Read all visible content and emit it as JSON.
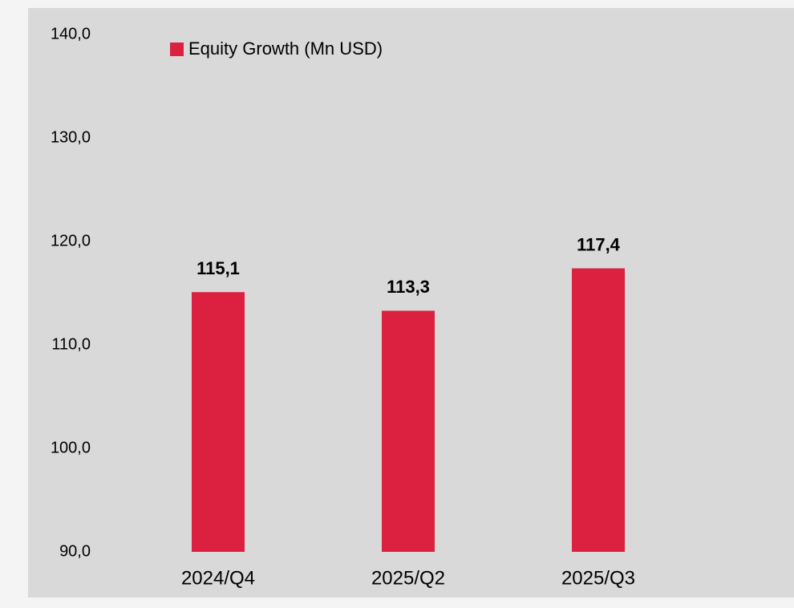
{
  "chart_data": {
    "type": "bar",
    "categories": [
      "2024/Q4",
      "2025/Q2",
      "2025/Q3"
    ],
    "series": [
      {
        "name": "Equity Growth (Mn USD)",
        "color": "#dc203f",
        "values": [
          115.1,
          113.3,
          117.4
        ],
        "value_labels": [
          "115,1",
          "113,3",
          "117,4"
        ]
      }
    ],
    "ylim": [
      90,
      140
    ],
    "yticks": [
      {
        "value": 90,
        "label": "90,0"
      },
      {
        "value": 100,
        "label": "100,0"
      },
      {
        "value": 110,
        "label": "110,0"
      },
      {
        "value": 120,
        "label": "120,0"
      },
      {
        "value": 130,
        "label": "130,0"
      },
      {
        "value": 140,
        "label": "140,0"
      }
    ],
    "grid": false
  }
}
